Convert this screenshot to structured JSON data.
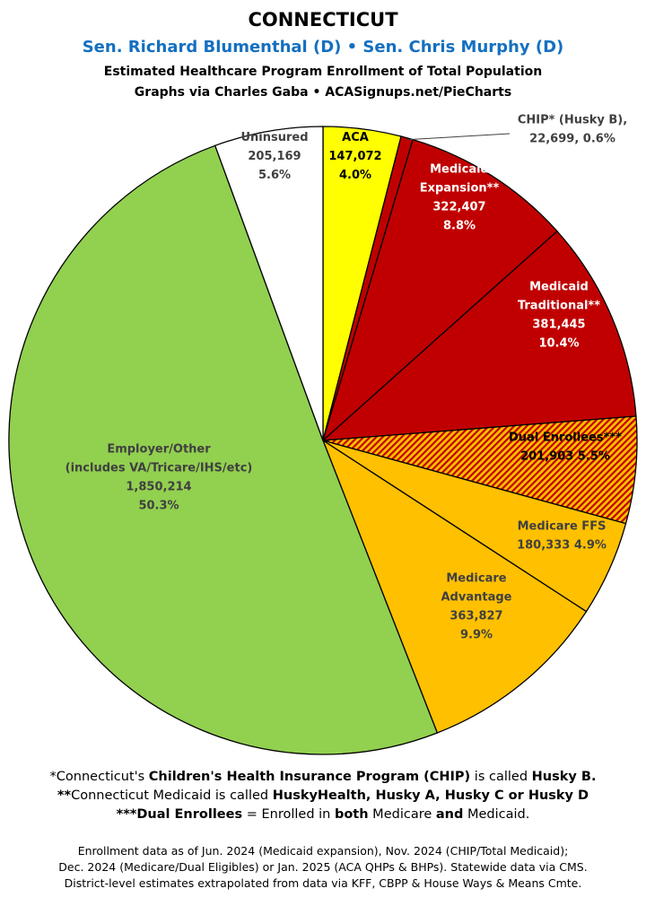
{
  "header": {
    "title": "CONNECTICUT",
    "senators": "Sen. Richard Blumenthal (D) • Sen. Chris Murphy (D)",
    "subtitle": "Estimated Healthcare Program Enrollment of Total Population",
    "credits": "Graphs via Charles Gaba   •   ACASignups.net/PieCharts"
  },
  "colors": {
    "aca": "#ffff00",
    "chip": "#c00000",
    "medicaid": "#c00000",
    "dual": "#ffc000",
    "medicare": "#ffc000",
    "employer": "#92d050",
    "uninsured": "#ffffff",
    "senators_text": "#1470c0"
  },
  "chart_data": {
    "type": "pie",
    "start": "12 o'clock",
    "direction": "clockwise",
    "slices": [
      {
        "id": "aca",
        "lines": [
          "ACA",
          "147,072",
          "4.0%"
        ],
        "value": 147072,
        "percent": 4.0,
        "color": "#ffff00",
        "pattern": "solid",
        "text_color": "#000000"
      },
      {
        "id": "chip",
        "lines": [
          "CHIP* (Husky B),",
          "22,699, 0.6%"
        ],
        "value": 22699,
        "percent": 0.6,
        "color": "#c00000",
        "pattern": "solid",
        "text_color": "#404040",
        "callout": true
      },
      {
        "id": "medicaid-expansion",
        "lines": [
          "Medicaid",
          "Expansion**",
          "322,407",
          "8.8%"
        ],
        "value": 322407,
        "percent": 8.8,
        "color": "#c00000",
        "pattern": "solid",
        "text_color": "#ffffff"
      },
      {
        "id": "medicaid-traditional",
        "lines": [
          "Medicaid",
          "Traditional**",
          "381,445",
          "10.4%"
        ],
        "value": 381445,
        "percent": 10.4,
        "color": "#c00000",
        "pattern": "solid",
        "text_color": "#ffffff"
      },
      {
        "id": "dual-enrollees",
        "lines": [
          "Dual Enrollees***",
          "201,903 5.5%"
        ],
        "value": 201903,
        "percent": 5.5,
        "color": "#ffc000",
        "pattern": "hatched",
        "text_color": "#000000"
      },
      {
        "id": "medicare-ffs",
        "lines": [
          "Medicare FFS",
          "180,333 4.9%"
        ],
        "value": 180333,
        "percent": 4.9,
        "color": "#ffc000",
        "pattern": "solid",
        "text_color": "#404040"
      },
      {
        "id": "medicare-advantage",
        "lines": [
          "Medicare",
          "Advantage",
          "363,827",
          "9.9%"
        ],
        "value": 363827,
        "percent": 9.9,
        "color": "#ffc000",
        "pattern": "solid",
        "text_color": "#404040"
      },
      {
        "id": "employer-other",
        "lines": [
          "Employer/Other",
          "(includes VA/Tricare/IHS/etc)",
          "1,850,214",
          "50.3%"
        ],
        "value": 1850214,
        "percent": 50.3,
        "color": "#92d050",
        "pattern": "solid",
        "text_color": "#404040"
      },
      {
        "id": "uninsured",
        "lines": [
          "Uninsured",
          "205,169",
          "5.6%"
        ],
        "value": 205169,
        "percent": 5.6,
        "color": "#ffffff",
        "pattern": "solid",
        "text_color": "#404040"
      }
    ]
  },
  "footnotes": [
    {
      "parts": [
        [
          "*Connecticut's ",
          false
        ],
        [
          "Children's Health Insurance Program (CHIP)",
          true
        ],
        [
          " is called ",
          false
        ],
        [
          "Husky B.",
          true
        ]
      ]
    },
    {
      "parts": [
        [
          "**",
          true
        ],
        [
          "Connecticut Medicaid is called ",
          false
        ],
        [
          "HuskyHealth, Husky A, Husky C or Husky D",
          true
        ]
      ]
    },
    {
      "parts": [
        [
          "***Dual Enrollees",
          true
        ],
        [
          " = Enrolled in ",
          false
        ],
        [
          "both",
          true
        ],
        [
          " Medicare ",
          false
        ],
        [
          "and",
          true
        ],
        [
          " Medicaid.",
          false
        ]
      ]
    }
  ],
  "sources": [
    "Enrollment data as of Jun. 2024 (Medicaid expansion), Nov. 2024 (CHIP/Total Medicaid);",
    "Dec. 2024 (Medicare/Dual Eligibles) or Jan. 2025 (ACA QHPs & BHPs). Statewide data via CMS.",
    "District-level estimates extrapolated from data via KFF, CBPP & House Ways & Means Cmte."
  ]
}
